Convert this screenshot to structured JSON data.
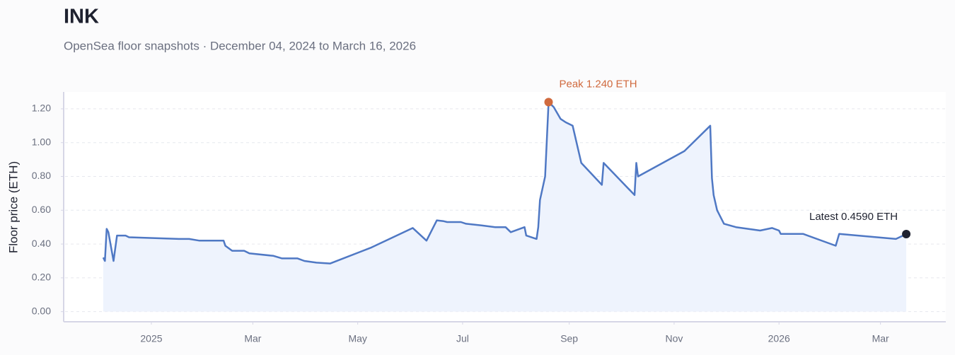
{
  "chart_data": {
    "type": "line",
    "title": "INK",
    "subtitle": "OpenSea floor snapshots · December 04, 2024 to March 16, 2026",
    "y_label": "Floor price (ETH)",
    "x": [
      "2024-12-04",
      "2024-12-05",
      "2024-12-06",
      "2024-12-07",
      "2024-12-10",
      "2024-12-12",
      "2024-12-17",
      "2024-12-19",
      "2025-01-17",
      "2025-01-23",
      "2025-01-29",
      "2025-02-12",
      "2025-02-13",
      "2025-02-17",
      "2025-02-24",
      "2025-02-27",
      "2025-03-13",
      "2025-03-18",
      "2025-03-27",
      "2025-03-31",
      "2025-04-07",
      "2025-04-15",
      "2025-05-09",
      "2025-06-02",
      "2025-06-10",
      "2025-06-16",
      "2025-06-20",
      "2025-06-22",
      "2025-06-30",
      "2025-07-03",
      "2025-07-12",
      "2025-07-20",
      "2025-07-26",
      "2025-07-29",
      "2025-08-06",
      "2025-08-07",
      "2025-08-13",
      "2025-08-14",
      "2025-08-15",
      "2025-08-18",
      "2025-08-20",
      "2025-08-23",
      "2025-08-27",
      "2025-08-30",
      "2025-09-03",
      "2025-09-08",
      "2025-09-20",
      "2025-09-21",
      "2025-10-09",
      "2025-10-10",
      "2025-10-11",
      "2025-11-07",
      "2025-11-22",
      "2025-11-23",
      "2025-11-24",
      "2025-11-26",
      "2025-11-30",
      "2025-12-07",
      "2025-12-21",
      "2025-12-28",
      "2026-01-01",
      "2026-01-02",
      "2026-01-15",
      "2026-02-03",
      "2026-02-05",
      "2026-03-10",
      "2026-03-16"
    ],
    "values": [
      0.32,
      0.3,
      0.49,
      0.47,
      0.3,
      0.45,
      0.45,
      0.44,
      0.43,
      0.43,
      0.42,
      0.42,
      0.39,
      0.36,
      0.36,
      0.345,
      0.33,
      0.315,
      0.315,
      0.3,
      0.29,
      0.285,
      0.38,
      0.495,
      0.42,
      0.54,
      0.535,
      0.53,
      0.53,
      0.52,
      0.51,
      0.5,
      0.5,
      0.47,
      0.5,
      0.45,
      0.43,
      0.5,
      0.66,
      0.8,
      1.24,
      1.21,
      1.14,
      1.12,
      1.1,
      0.88,
      0.75,
      0.88,
      0.69,
      0.88,
      0.8,
      0.95,
      1.1,
      0.79,
      0.69,
      0.6,
      0.52,
      0.5,
      0.48,
      0.495,
      0.48,
      0.46,
      0.46,
      0.39,
      0.46,
      0.43,
      0.459
    ],
    "color": "#4f78c4",
    "fill_color": "#eef3fd",
    "peak_color": "#d06a3e",
    "latest_color": "#1f2230",
    "annotations": {
      "peak": "Peak 1.240 ETH",
      "latest": "Latest 0.4590 ETH"
    },
    "xlim": [
      "2024-11-11",
      "2026-04-08"
    ],
    "xticks": [
      {
        "value": "2025-01-01",
        "label": "2025"
      },
      {
        "value": "2025-03-01",
        "label": "Mar"
      },
      {
        "value": "2025-05-01",
        "label": "May"
      },
      {
        "value": "2025-07-01",
        "label": "Jul"
      },
      {
        "value": "2025-09-01",
        "label": "Sep"
      },
      {
        "value": "2025-11-01",
        "label": "Nov"
      },
      {
        "value": "2026-01-01",
        "label": "2026"
      },
      {
        "value": "2026-03-01",
        "label": "Mar"
      }
    ],
    "ylim": [
      -0.06,
      1.3
    ],
    "yticks": [
      {
        "value": 0,
        "label": "0.00"
      },
      {
        "value": 0.2,
        "label": "0.20"
      },
      {
        "value": 0.4,
        "label": "0.40"
      },
      {
        "value": 0.6,
        "label": "0.60"
      },
      {
        "value": 0.8,
        "label": "0.80"
      },
      {
        "value": 1,
        "label": "1.00"
      },
      {
        "value": 1.2,
        "label": "1.20"
      }
    ],
    "grid": true
  }
}
